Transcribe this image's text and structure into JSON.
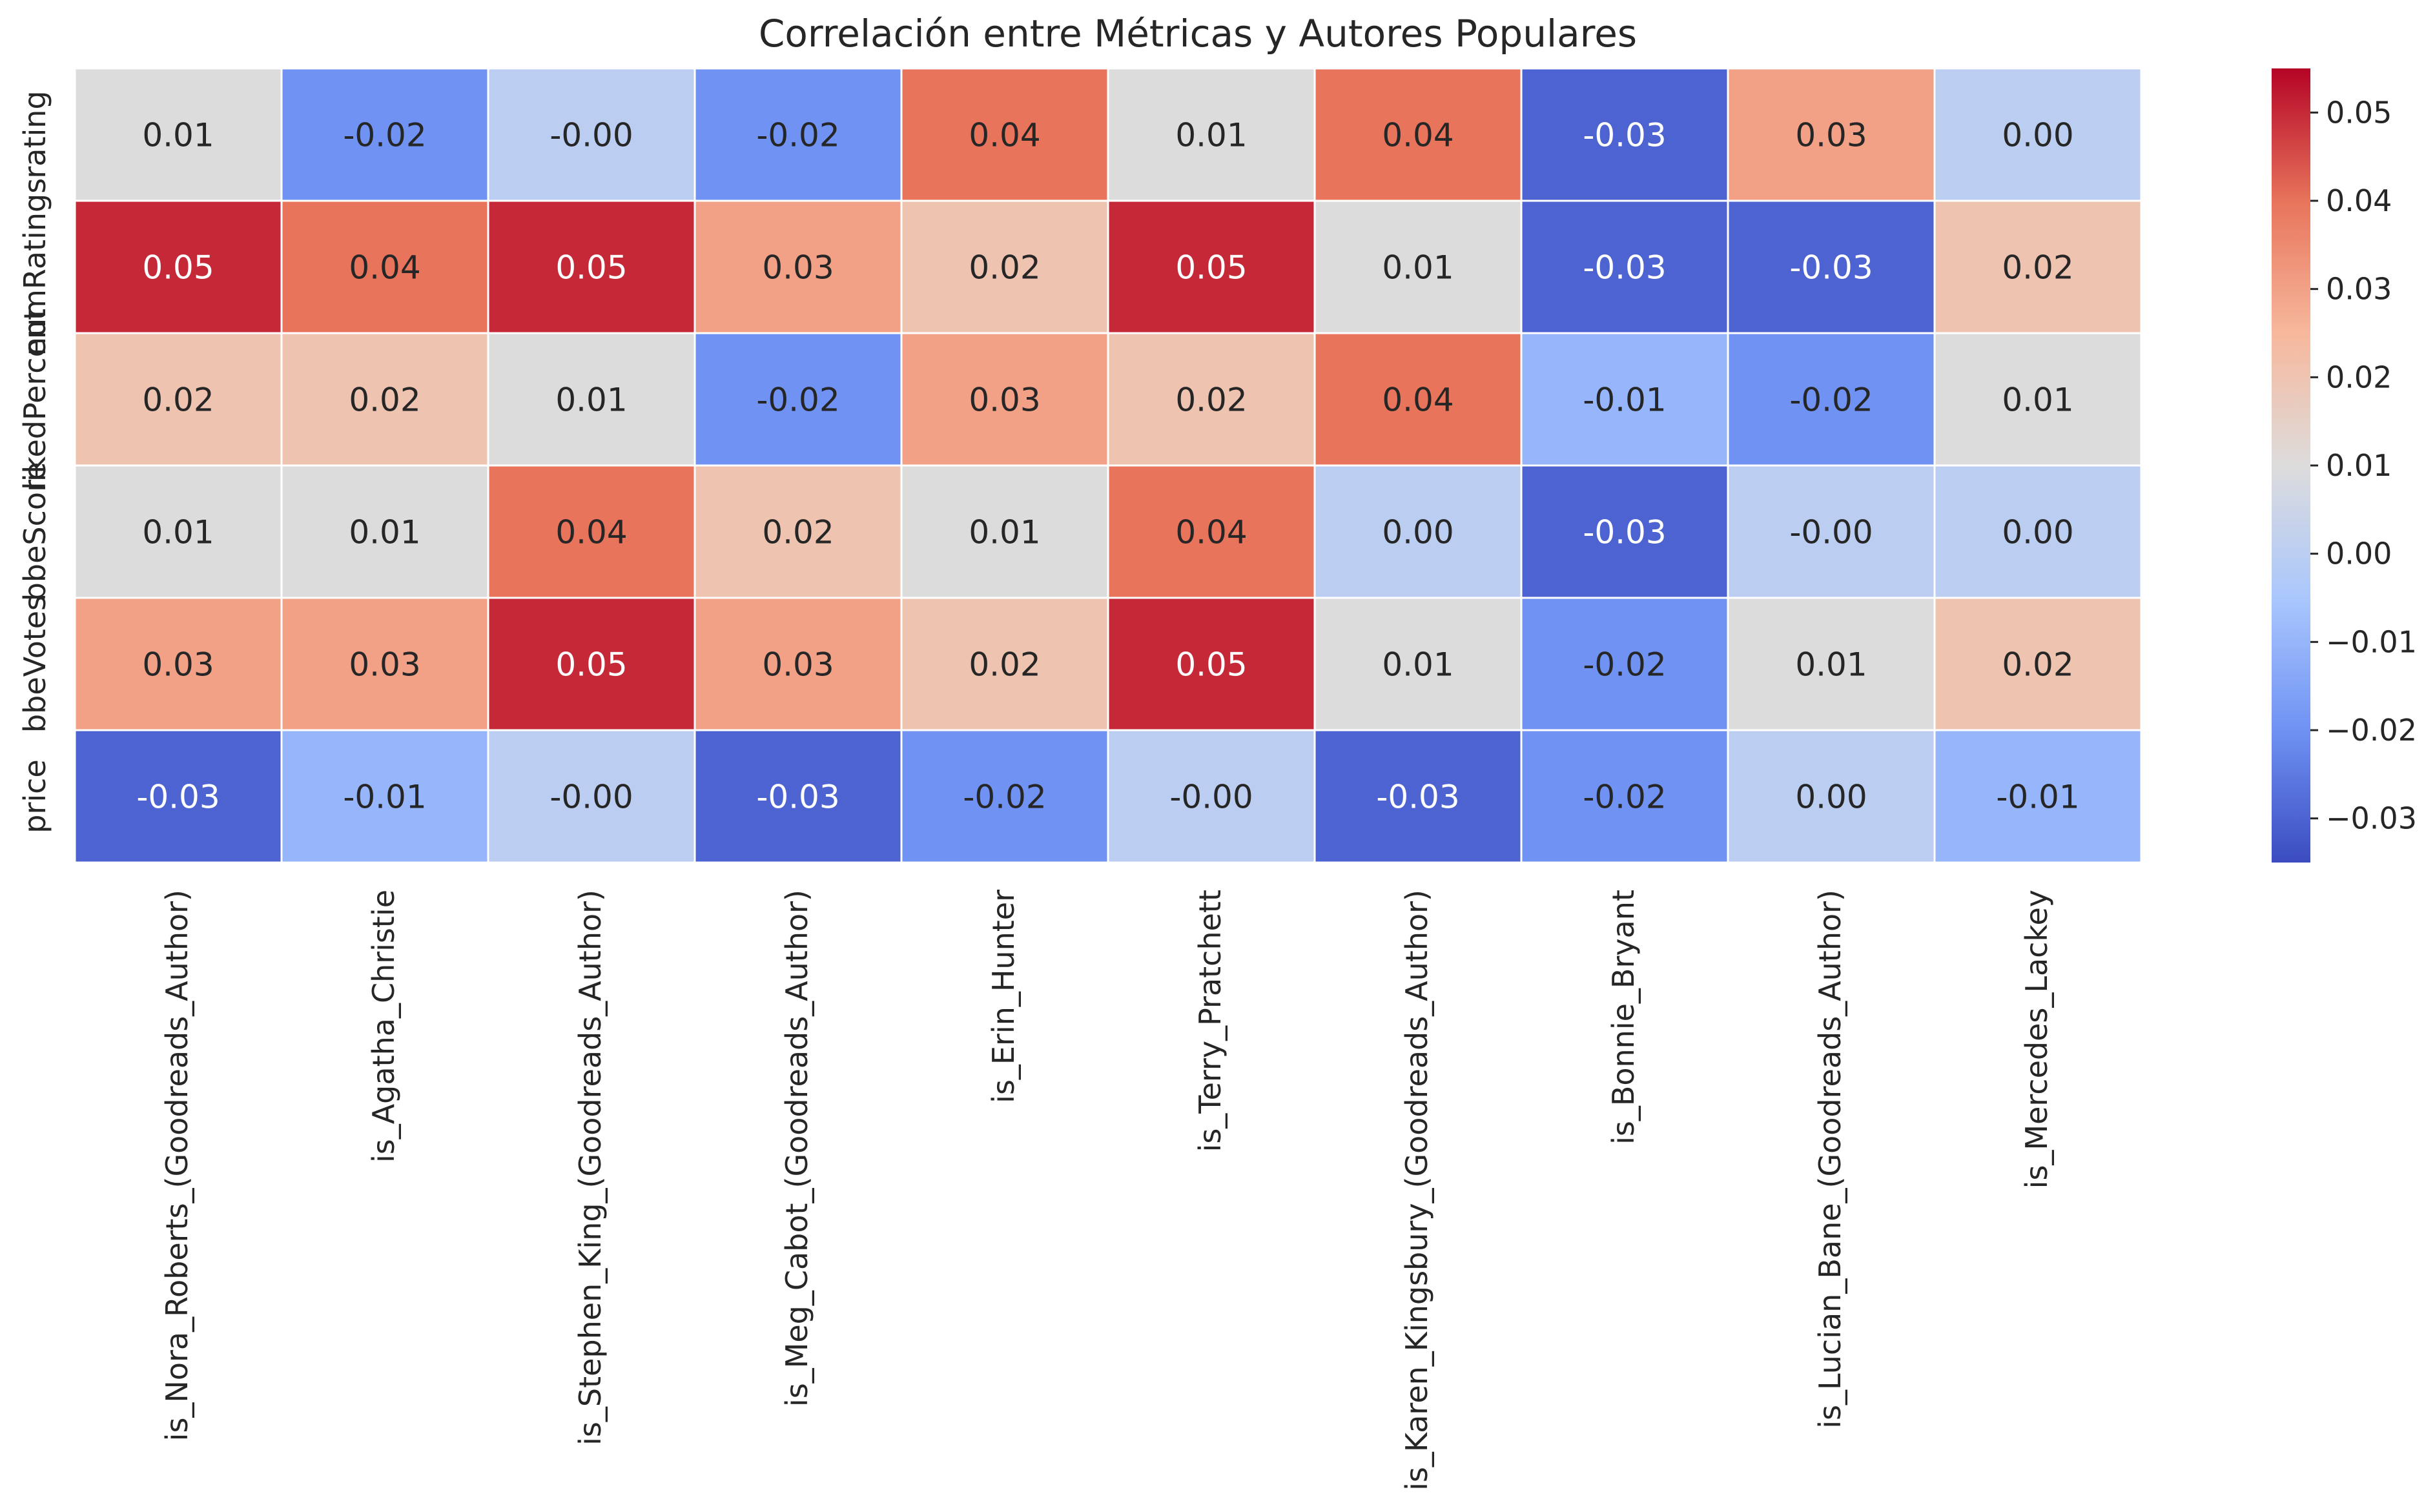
{
  "chart_data": {
    "type": "heatmap",
    "title": "Correlación entre Métricas y Autores Populares",
    "xlabel": "",
    "ylabel": "",
    "rows": [
      "rating",
      "numRatings",
      "likedPercent",
      "bbeScore",
      "bbeVotes",
      "price"
    ],
    "columns": [
      "is_Nora_Roberts_(Goodreads_Author)",
      "is_Agatha_Christie",
      "is_Stephen_King_(Goodreads_Author)",
      "is_Meg_Cabot_(Goodreads_Author)",
      "is_Erin_Hunter",
      "is_Terry_Pratchett",
      "is_Karen_Kingsbury_(Goodreads_Author)",
      "is_Bonnie_Bryant",
      "is_Lucian_Bane_(Goodreads_Author)",
      "is_Mercedes_Lackey"
    ],
    "values": [
      [
        0.01,
        -0.02,
        -0.0,
        -0.02,
        0.04,
        0.01,
        0.04,
        -0.03,
        0.03,
        0.0
      ],
      [
        0.05,
        0.04,
        0.05,
        0.03,
        0.02,
        0.05,
        0.01,
        -0.03,
        -0.03,
        0.02
      ],
      [
        0.02,
        0.02,
        0.01,
        -0.02,
        0.03,
        0.02,
        0.04,
        -0.01,
        -0.02,
        0.01
      ],
      [
        0.01,
        0.01,
        0.04,
        0.02,
        0.01,
        0.04,
        0.0,
        -0.03,
        -0.0,
        0.0
      ],
      [
        0.03,
        0.03,
        0.05,
        0.03,
        0.02,
        0.05,
        0.01,
        -0.02,
        0.01,
        0.02
      ],
      [
        -0.03,
        -0.01,
        -0.0,
        -0.03,
        -0.02,
        -0.0,
        -0.03,
        -0.02,
        0.0,
        -0.01
      ]
    ],
    "cell_labels": [
      [
        "0.01",
        "-0.02",
        "-0.00",
        "-0.02",
        "0.04",
        "0.01",
        "0.04",
        "-0.03",
        "0.03",
        "0.00"
      ],
      [
        "0.05",
        "0.04",
        "0.05",
        "0.03",
        "0.02",
        "0.05",
        "0.01",
        "-0.03",
        "-0.03",
        "0.02"
      ],
      [
        "0.02",
        "0.02",
        "0.01",
        "-0.02",
        "0.03",
        "0.02",
        "0.04",
        "-0.01",
        "-0.02",
        "0.01"
      ],
      [
        "0.01",
        "0.01",
        "0.04",
        "0.02",
        "0.01",
        "0.04",
        "0.00",
        "-0.03",
        "-0.00",
        "0.00"
      ],
      [
        "0.03",
        "0.03",
        "0.05",
        "0.03",
        "0.02",
        "0.05",
        "0.01",
        "-0.02",
        "0.01",
        "0.02"
      ],
      [
        "-0.03",
        "-0.01",
        "-0.00",
        "-0.03",
        "-0.02",
        "-0.00",
        "-0.03",
        "-0.02",
        "0.00",
        "-0.01"
      ]
    ],
    "colormap": "coolwarm",
    "colormap_stops": [
      "#3b4cc0",
      "#6f92f3",
      "#aac7fd",
      "#dddcdc",
      "#f7b89c",
      "#e7745b",
      "#b40426"
    ],
    "colorbar": {
      "range": [
        -0.035,
        0.055
      ],
      "ticks": [
        -0.03,
        -0.02,
        -0.01,
        0.0,
        0.01,
        0.02,
        0.03,
        0.04,
        0.05
      ],
      "tick_labels": [
        "−0.03",
        "−0.02",
        "−0.01",
        "0.00",
        "0.01",
        "0.02",
        "0.03",
        "0.04",
        "0.05"
      ]
    },
    "grid": true,
    "legend": "colorbar-right"
  }
}
